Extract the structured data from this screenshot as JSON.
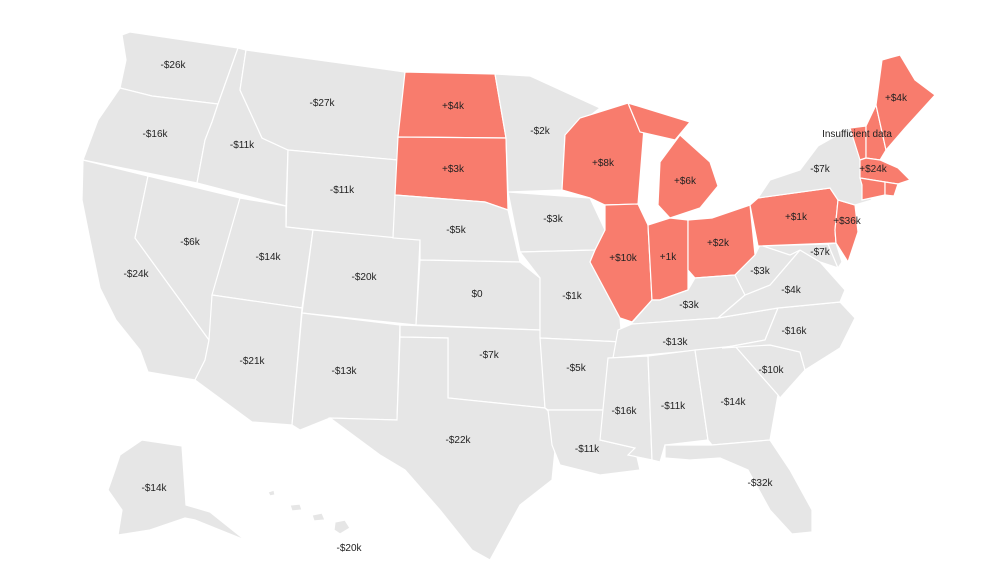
{
  "colors": {
    "positive": "#f87c6d",
    "negative": "#e6e6e6",
    "border": "#ffffff",
    "text": "#222222"
  },
  "note": "Insufficient data",
  "states": {
    "wa": {
      "name": "Washington",
      "label": "-$26k",
      "sign": "negative"
    },
    "or": {
      "name": "Oregon",
      "label": "-$16k",
      "sign": "negative"
    },
    "ca": {
      "name": "California",
      "label": "-$24k",
      "sign": "negative"
    },
    "id": {
      "name": "Idaho",
      "label": "-$11k",
      "sign": "negative"
    },
    "nv": {
      "name": "Nevada",
      "label": "-$6k",
      "sign": "negative"
    },
    "mt": {
      "name": "Montana",
      "label": "-$27k",
      "sign": "negative"
    },
    "wy": {
      "name": "Wyoming",
      "label": "-$11k",
      "sign": "negative"
    },
    "ut": {
      "name": "Utah",
      "label": "-$14k",
      "sign": "negative"
    },
    "az": {
      "name": "Arizona",
      "label": "-$21k",
      "sign": "negative"
    },
    "co": {
      "name": "Colorado",
      "label": "-$20k",
      "sign": "negative"
    },
    "nm": {
      "name": "New Mexico",
      "label": "-$13k",
      "sign": "negative"
    },
    "nd": {
      "name": "North Dakota",
      "label": "+$4k",
      "sign": "positive"
    },
    "sd": {
      "name": "South Dakota",
      "label": "+$3k",
      "sign": "positive"
    },
    "ne": {
      "name": "Nebraska",
      "label": "-$5k",
      "sign": "negative"
    },
    "ks": {
      "name": "Kansas",
      "label": "$0",
      "sign": "negative"
    },
    "ok": {
      "name": "Oklahoma",
      "label": "-$7k",
      "sign": "negative"
    },
    "tx": {
      "name": "Texas",
      "label": "-$22k",
      "sign": "negative"
    },
    "mn": {
      "name": "Minnesota",
      "label": "-$2k",
      "sign": "negative"
    },
    "ia": {
      "name": "Iowa",
      "label": "-$3k",
      "sign": "negative"
    },
    "mo": {
      "name": "Missouri",
      "label": "-$1k",
      "sign": "negative"
    },
    "ar": {
      "name": "Arkansas",
      "label": "-$5k",
      "sign": "negative"
    },
    "la": {
      "name": "Louisiana",
      "label": "-$11k",
      "sign": "negative"
    },
    "wi": {
      "name": "Wisconsin",
      "label": "+$8k",
      "sign": "positive"
    },
    "il": {
      "name": "Illinois",
      "label": "+$10k",
      "sign": "positive"
    },
    "mi": {
      "name": "Michigan",
      "label": "+$6k",
      "sign": "positive"
    },
    "in": {
      "name": "Indiana",
      "label": "+1k",
      "sign": "positive"
    },
    "oh": {
      "name": "Ohio",
      "label": "+$2k",
      "sign": "positive"
    },
    "ky": {
      "name": "Kentucky",
      "label": "-$3k",
      "sign": "negative"
    },
    "tn": {
      "name": "Tennessee",
      "label": "-$13k",
      "sign": "negative"
    },
    "ms": {
      "name": "Mississippi",
      "label": "-$16k",
      "sign": "negative"
    },
    "al": {
      "name": "Alabama",
      "label": "-$11k",
      "sign": "negative"
    },
    "ga": {
      "name": "Georgia",
      "label": "-$14k",
      "sign": "negative"
    },
    "fl": {
      "name": "Florida",
      "label": "-$32k",
      "sign": "negative"
    },
    "sc": {
      "name": "South Carolina",
      "label": "-$10k",
      "sign": "negative"
    },
    "nc": {
      "name": "North Carolina",
      "label": "-$16k",
      "sign": "negative"
    },
    "va": {
      "name": "Virginia",
      "label": "-$4k",
      "sign": "negative"
    },
    "wv": {
      "name": "West Virginia",
      "label": "-$3k",
      "sign": "negative"
    },
    "md": {
      "name": "Maryland",
      "label": "-$7k",
      "sign": "negative"
    },
    "pa": {
      "name": "Pennsylvania",
      "label": "+$1k",
      "sign": "positive"
    },
    "ny": {
      "name": "New York",
      "label": "-$7k",
      "sign": "negative"
    },
    "nj": {
      "name": "New Jersey",
      "label": "+$36k",
      "sign": "positive"
    },
    "ct": {
      "name": "Connecticut",
      "label": "+$24k",
      "sign": "positive"
    },
    "ma": {
      "name": "Massachusetts",
      "label": "",
      "sign": "positive"
    },
    "ri": {
      "name": "Rhode Island",
      "label": "",
      "sign": "positive"
    },
    "vt": {
      "name": "Vermont",
      "label": "",
      "sign": "positive"
    },
    "nh": {
      "name": "New Hampshire",
      "label": "",
      "sign": "positive"
    },
    "me": {
      "name": "Maine",
      "label": "+$4k",
      "sign": "positive"
    },
    "de": {
      "name": "Delaware",
      "label": "",
      "sign": "negative"
    },
    "ak": {
      "name": "Alaska",
      "label": "-$14k",
      "sign": "negative"
    },
    "hi": {
      "name": "Hawaii",
      "label": "-$20k",
      "sign": "negative"
    }
  }
}
